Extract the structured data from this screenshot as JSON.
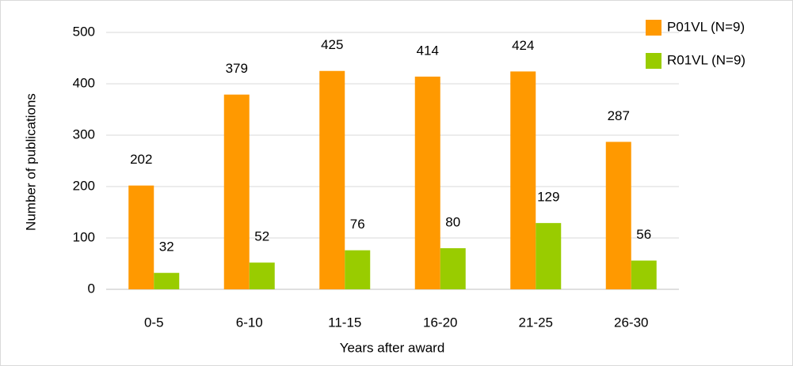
{
  "chart_data": {
    "type": "bar",
    "x_label": "Years after award",
    "y_label": "Number of publications",
    "categories": [
      "0-5",
      "6-10",
      "11-15",
      "16-20",
      "21-25",
      "26-30"
    ],
    "series": [
      {
        "name": "P01VL (N=9)",
        "color": "#ff9900",
        "values": [
          202,
          379,
          425,
          414,
          424,
          287
        ]
      },
      {
        "name": "R01VL (N=9)",
        "color": "#99cc00",
        "values": [
          32,
          52,
          76,
          80,
          129,
          56
        ]
      }
    ],
    "ylim": [
      0,
      500
    ],
    "yticks": [
      0,
      100,
      200,
      300,
      400,
      500
    ],
    "grid": true,
    "legend": "top-right"
  }
}
